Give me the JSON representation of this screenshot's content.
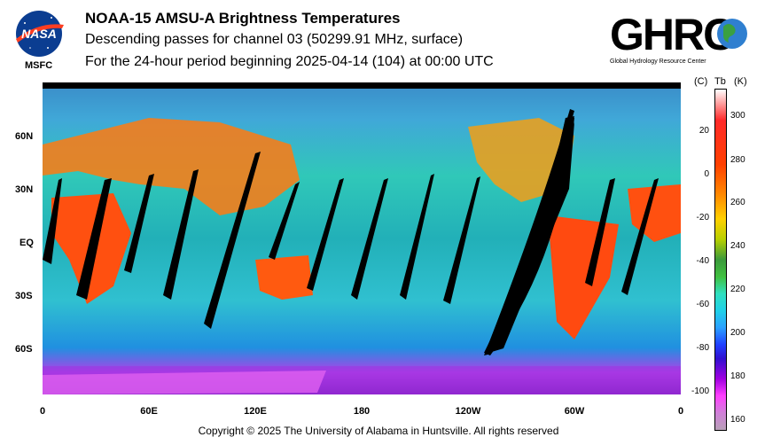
{
  "header": {
    "title": "NOAA-15 AMSU-A Brightness Temperatures",
    "subtitle": "Descending passes for channel 03 (50299.91 MHz, surface)",
    "period": "For the 24-hour period beginning 2025-04-14 (104) at 00:00 UTC"
  },
  "logos": {
    "nasa_text": "NASA",
    "msfc_label": "MSFC",
    "ghrc_text": "GHRC",
    "ghrc_caption": "Global Hydrology Resource Center"
  },
  "map": {
    "lat_labels": [
      "60N",
      "30N",
      "EQ",
      "30S",
      "60S"
    ],
    "lon_labels": [
      "0",
      "60E",
      "120E",
      "180",
      "120W",
      "60W",
      "0"
    ]
  },
  "colorbar": {
    "unit_c": "(C)",
    "unit_tb": "Tb",
    "unit_k": "(K)",
    "celsius_ticks": [
      "20",
      "0",
      "-20",
      "-40",
      "-60",
      "-80",
      "-100"
    ],
    "kelvin_ticks": [
      "300",
      "280",
      "260",
      "240",
      "220",
      "200",
      "180",
      "160"
    ]
  },
  "footer": {
    "copyright": "Copyright © 2025 The University of Alabama in Huntsville.  All rights reserved"
  }
}
